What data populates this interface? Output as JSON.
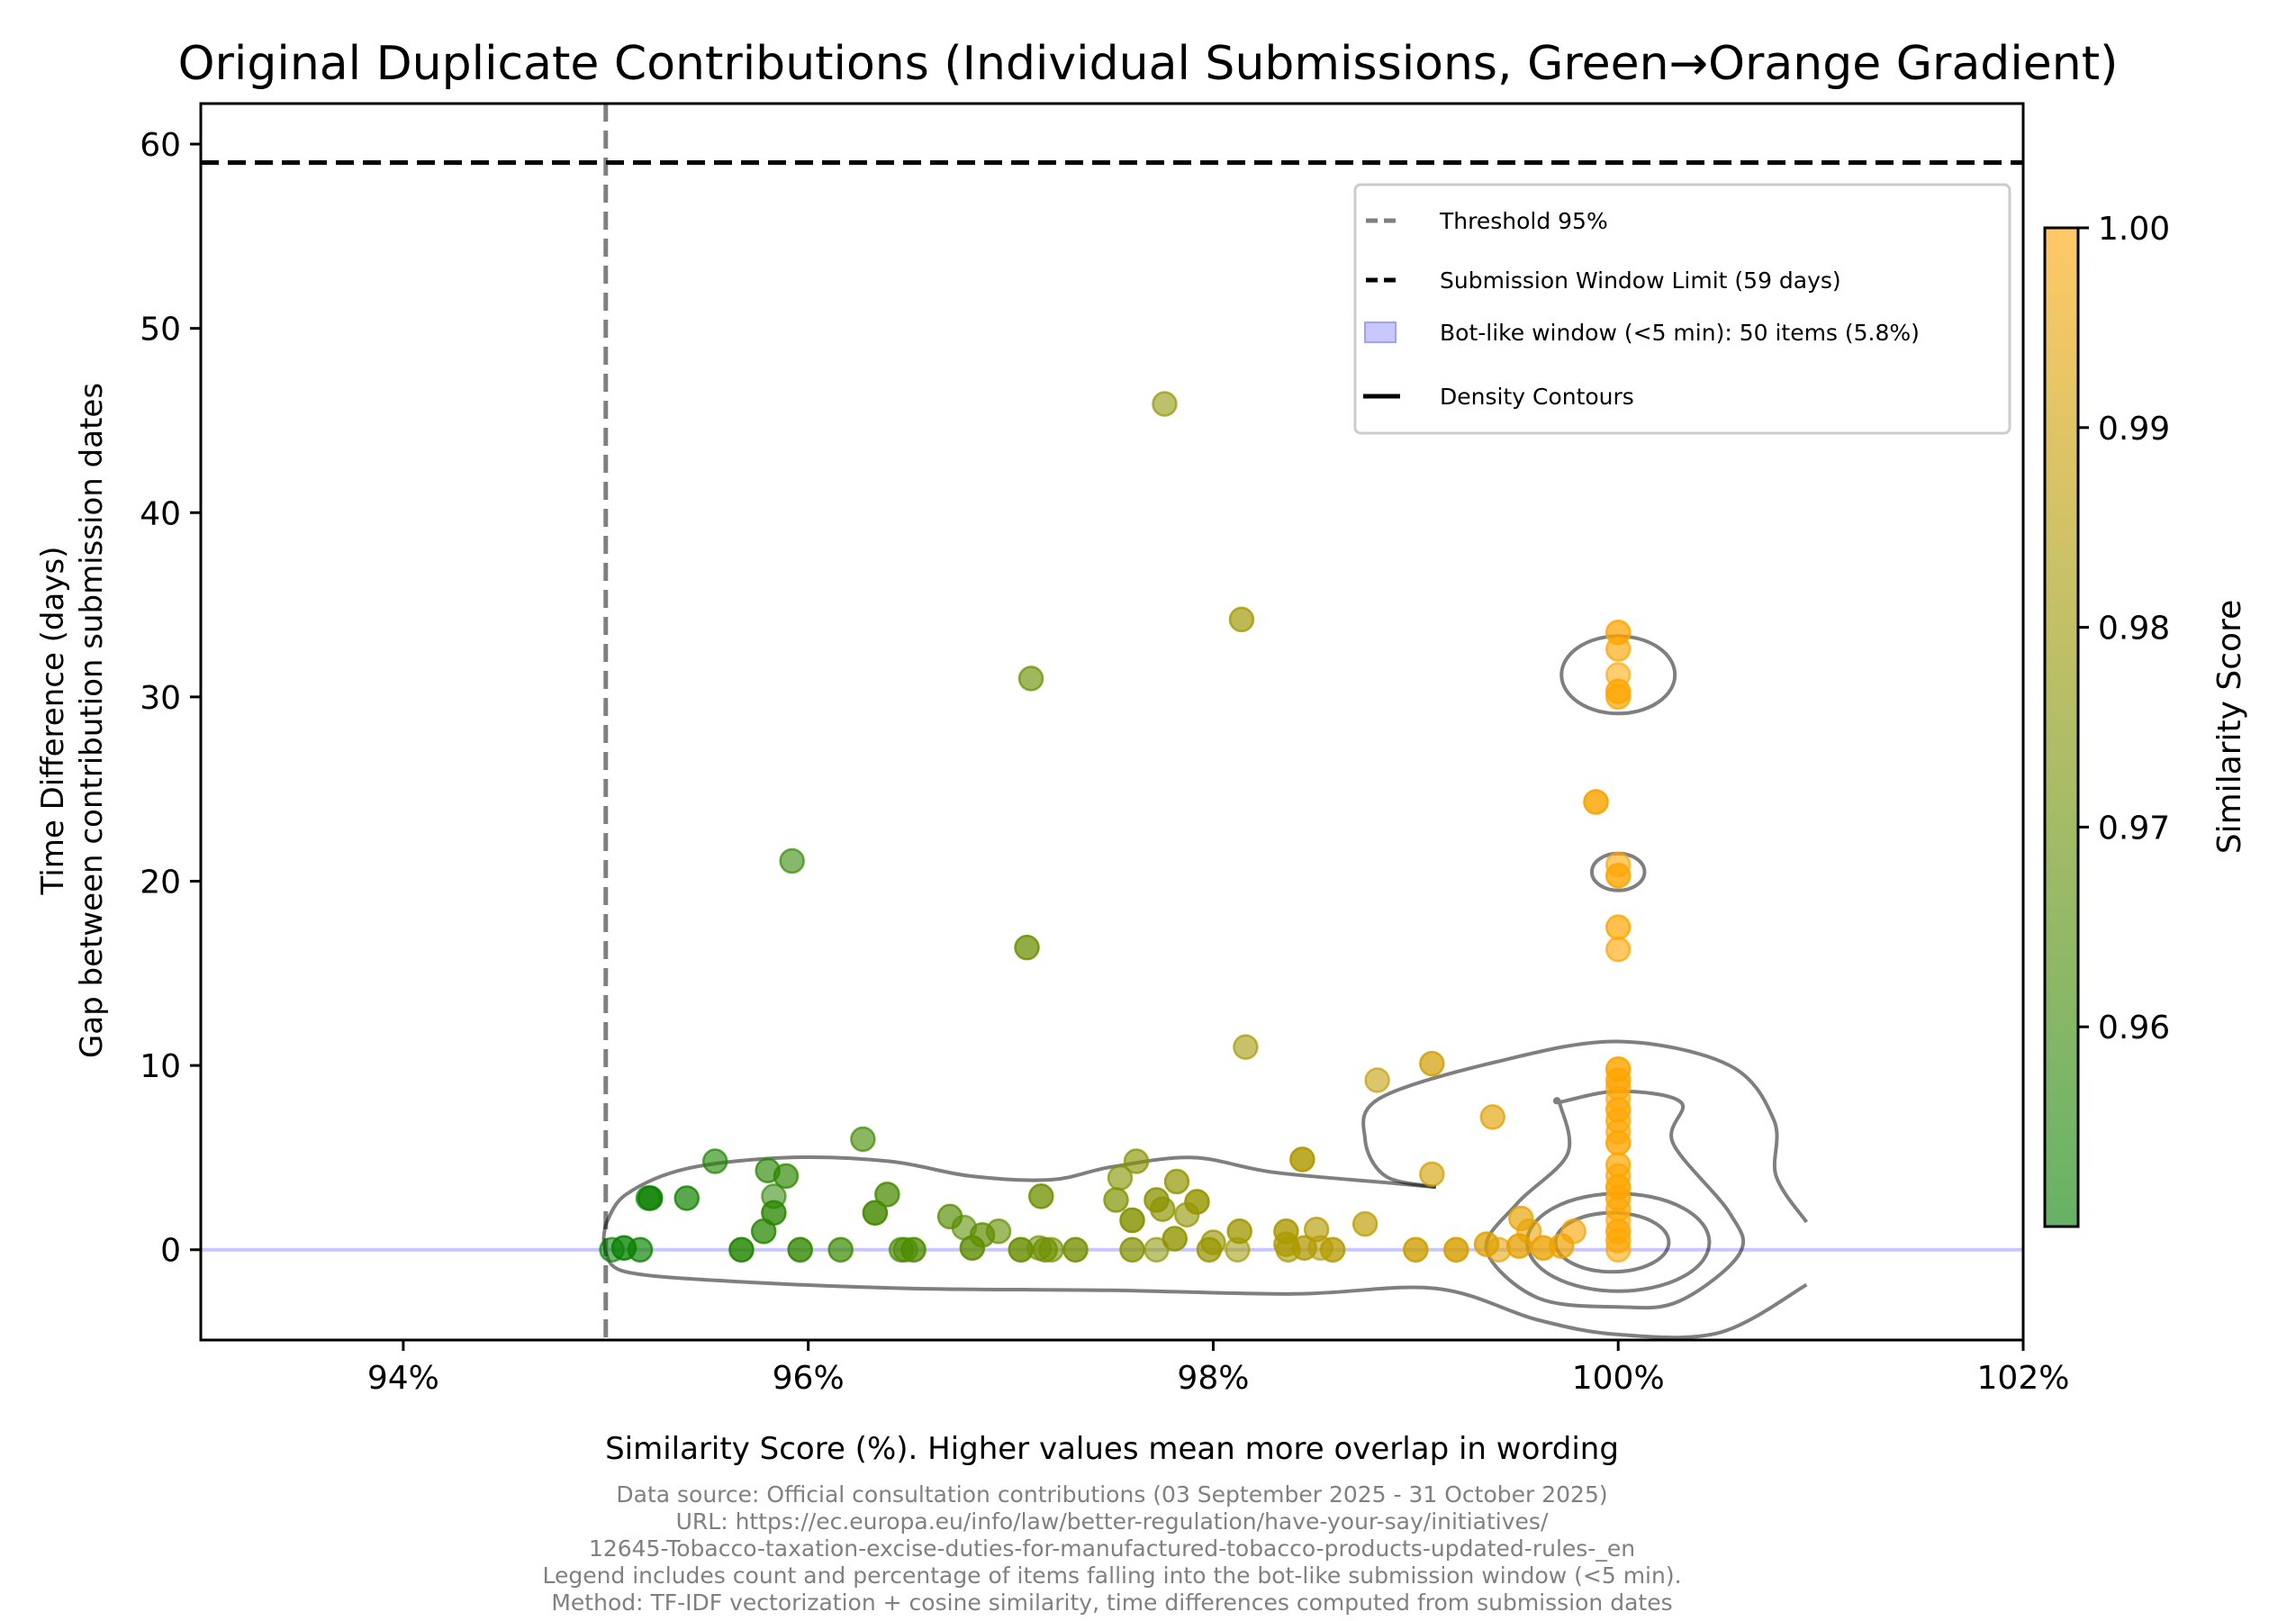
{
  "chart_data": {
    "type": "scatter",
    "title": "Original Duplicate Contributions (Individual Submissions, Green→Orange Gradient)",
    "xlabel": "Similarity Score (%). Higher values mean more overlap in wording",
    "ylabel_lines": [
      "Time Difference (days)",
      "Gap between contribution submission dates"
    ],
    "xlim": [
      93,
      102
    ],
    "ylim": [
      -4.9,
      62.2
    ],
    "x_ticks": [
      94,
      96,
      98,
      100,
      102
    ],
    "x_tick_labels": [
      "94%",
      "96%",
      "98%",
      "100%",
      "102%"
    ],
    "y_ticks": [
      0,
      10,
      20,
      30,
      40,
      50,
      60
    ],
    "y_tick_labels": [
      "0",
      "10",
      "20",
      "30",
      "40",
      "50",
      "60"
    ],
    "grid": false,
    "reference_lines": {
      "threshold": {
        "label": "Threshold 95%",
        "x": 95,
        "color": "#808080",
        "style": "dashed"
      },
      "window_limit": {
        "label": "Submission Window Limit (59 days)",
        "y": 59,
        "color": "#000000",
        "style": "dashed"
      },
      "bot_window": {
        "label": "Bot-like window (<5 min): 50 items (5.8%)",
        "y_range_days": [
          0,
          0.0035
        ],
        "color": "#c8c8ff"
      }
    },
    "legend": {
      "placement": "upper-right",
      "entries": [
        {
          "label": "Threshold 95%",
          "kind": "dashed-line",
          "color": "#808080"
        },
        {
          "label": "Submission Window Limit (59 days)",
          "kind": "dashed-line",
          "color": "#000000"
        },
        {
          "label": "Bot-like window (<5 min): 50 items (5.8%)",
          "kind": "patch",
          "color": "#c8c8ff"
        },
        {
          "label": "Density Contours",
          "kind": "solid-line",
          "color": "#000000"
        }
      ]
    },
    "colorbar": {
      "label": "Similarity Score",
      "range": [
        0.95,
        1.0
      ],
      "ticks": [
        0.96,
        0.97,
        0.98,
        0.99,
        1.0
      ],
      "tick_labels": [
        "0.96",
        "0.97",
        "0.98",
        "0.99",
        "1.00"
      ],
      "colors": [
        "#008000",
        "#ffa500"
      ]
    },
    "points": [
      {
        "x": 95.03,
        "y": 0.0
      },
      {
        "x": 95.09,
        "y": 0.1
      },
      {
        "x": 95.17,
        "y": 0.0
      },
      {
        "x": 95.21,
        "y": 2.8
      },
      {
        "x": 95.22,
        "y": 2.8
      },
      {
        "x": 95.4,
        "y": 2.8
      },
      {
        "x": 95.54,
        "y": 4.8
      },
      {
        "x": 95.67,
        "y": 0.0
      },
      {
        "x": 95.78,
        "y": 1.0
      },
      {
        "x": 95.8,
        "y": 4.3
      },
      {
        "x": 95.83,
        "y": 2.9
      },
      {
        "x": 95.83,
        "y": 2.0
      },
      {
        "x": 95.89,
        "y": 4.0
      },
      {
        "x": 95.92,
        "y": 21.1
      },
      {
        "x": 95.96,
        "y": 0.0
      },
      {
        "x": 96.16,
        "y": 0.0
      },
      {
        "x": 96.27,
        "y": 6.0
      },
      {
        "x": 96.33,
        "y": 2.0
      },
      {
        "x": 96.39,
        "y": 3.0
      },
      {
        "x": 96.46,
        "y": 0.0
      },
      {
        "x": 96.48,
        "y": 0.0
      },
      {
        "x": 96.52,
        "y": 0.0
      },
      {
        "x": 96.7,
        "y": 1.8
      },
      {
        "x": 96.77,
        "y": 1.2
      },
      {
        "x": 96.81,
        "y": 0.1
      },
      {
        "x": 96.86,
        "y": 0.8
      },
      {
        "x": 96.94,
        "y": 1.0
      },
      {
        "x": 97.05,
        "y": 0.0
      },
      {
        "x": 97.08,
        "y": 16.4
      },
      {
        "x": 97.1,
        "y": 31.0
      },
      {
        "x": 97.14,
        "y": 0.1
      },
      {
        "x": 97.15,
        "y": 2.9
      },
      {
        "x": 97.17,
        "y": 0.0
      },
      {
        "x": 97.2,
        "y": 0.0
      },
      {
        "x": 97.32,
        "y": 0.0
      },
      {
        "x": 97.52,
        "y": 2.7
      },
      {
        "x": 97.54,
        "y": 3.9
      },
      {
        "x": 97.6,
        "y": 1.6
      },
      {
        "x": 97.6,
        "y": 0.0
      },
      {
        "x": 97.62,
        "y": 4.8
      },
      {
        "x": 97.72,
        "y": 0.0
      },
      {
        "x": 97.72,
        "y": 2.7
      },
      {
        "x": 97.75,
        "y": 2.2
      },
      {
        "x": 97.76,
        "y": 45.9
      },
      {
        "x": 97.81,
        "y": 0.6
      },
      {
        "x": 97.82,
        "y": 3.7
      },
      {
        "x": 97.87,
        "y": 1.9
      },
      {
        "x": 97.92,
        "y": 2.6
      },
      {
        "x": 97.98,
        "y": 0.0
      },
      {
        "x": 98.0,
        "y": 0.4
      },
      {
        "x": 98.12,
        "y": 0.0
      },
      {
        "x": 98.13,
        "y": 1.0
      },
      {
        "x": 98.14,
        "y": 34.2
      },
      {
        "x": 98.16,
        "y": 11.0
      },
      {
        "x": 98.36,
        "y": 1.0
      },
      {
        "x": 98.36,
        "y": 0.3
      },
      {
        "x": 98.37,
        "y": 0.0
      },
      {
        "x": 98.44,
        "y": 4.9
      },
      {
        "x": 98.45,
        "y": 0.1
      },
      {
        "x": 98.51,
        "y": 1.1
      },
      {
        "x": 98.53,
        "y": 0.1
      },
      {
        "x": 98.59,
        "y": 0.0
      },
      {
        "x": 98.75,
        "y": 1.4
      },
      {
        "x": 98.81,
        "y": 9.2
      },
      {
        "x": 99.0,
        "y": 0.0
      },
      {
        "x": 99.08,
        "y": 10.1
      },
      {
        "x": 99.08,
        "y": 4.1
      },
      {
        "x": 99.2,
        "y": 0.0
      },
      {
        "x": 99.35,
        "y": 0.3
      },
      {
        "x": 99.38,
        "y": 7.2
      },
      {
        "x": 99.41,
        "y": 0.0
      },
      {
        "x": 99.51,
        "y": 0.2
      },
      {
        "x": 99.52,
        "y": 1.7
      },
      {
        "x": 99.56,
        "y": 1.0
      },
      {
        "x": 99.63,
        "y": 0.1
      },
      {
        "x": 99.72,
        "y": 0.2
      },
      {
        "x": 99.78,
        "y": 1.0
      },
      {
        "x": 99.89,
        "y": 24.3
      },
      {
        "x": 100.0,
        "y": 33.5
      },
      {
        "x": 100.0,
        "y": 32.6
      },
      {
        "x": 100.0,
        "y": 31.2
      },
      {
        "x": 100.0,
        "y": 30.3
      },
      {
        "x": 100.0,
        "y": 30.0
      },
      {
        "x": 100.0,
        "y": 20.9
      },
      {
        "x": 100.0,
        "y": 20.3
      },
      {
        "x": 100.0,
        "y": 17.5
      },
      {
        "x": 100.0,
        "y": 16.3
      },
      {
        "x": 100.0,
        "y": 9.8
      },
      {
        "x": 100.0,
        "y": 9.2
      },
      {
        "x": 100.0,
        "y": 8.8
      },
      {
        "x": 100.0,
        "y": 8.2
      },
      {
        "x": 100.0,
        "y": 7.6
      },
      {
        "x": 100.0,
        "y": 7.0
      },
      {
        "x": 100.0,
        "y": 6.4
      },
      {
        "x": 100.0,
        "y": 5.8
      },
      {
        "x": 100.0,
        "y": 4.6
      },
      {
        "x": 100.0,
        "y": 4.0
      },
      {
        "x": 100.0,
        "y": 3.4
      },
      {
        "x": 100.0,
        "y": 2.8
      },
      {
        "x": 100.0,
        "y": 2.2
      },
      {
        "x": 100.0,
        "y": 1.6
      },
      {
        "x": 100.0,
        "y": 1.0
      },
      {
        "x": 100.0,
        "y": 0.5
      },
      {
        "x": 100.0,
        "y": 0.0
      }
    ],
    "contours": [
      {
        "level": "outer-left",
        "path_data_units": [
          [
            95.0,
            1.4
          ],
          [
            95.1,
            3.0
          ],
          [
            95.4,
            4.4
          ],
          [
            95.9,
            5.0
          ],
          [
            96.4,
            4.8
          ],
          [
            96.8,
            4.0
          ],
          [
            97.2,
            3.8
          ],
          [
            97.5,
            4.5
          ],
          [
            97.9,
            5.0
          ],
          [
            98.3,
            4.2
          ],
          [
            98.9,
            3.6
          ],
          [
            99.1,
            3.4
          ]
        ]
      },
      {
        "level": "outer",
        "ring_data_units": [
          [
            99.1,
            3.4
          ],
          [
            98.85,
            4.0
          ],
          [
            98.75,
            6.0
          ],
          [
            98.82,
            8.2
          ],
          [
            99.4,
            10.2
          ],
          [
            100.0,
            11.3
          ],
          [
            100.55,
            10.0
          ],
          [
            100.77,
            7.0
          ],
          [
            100.78,
            4.0
          ],
          [
            100.93,
            1.5
          ]
        ],
        "lower_data_units": [
          [
            95.0,
            -0.2
          ],
          [
            95.1,
            -1.2
          ],
          [
            95.6,
            -1.7
          ],
          [
            96.5,
            -2.1
          ],
          [
            97.5,
            -2.2
          ],
          [
            98.4,
            -2.4
          ],
          [
            99.1,
            -2.1
          ],
          [
            99.6,
            -3.8
          ],
          [
            100.0,
            -4.6
          ],
          [
            100.5,
            -4.5
          ],
          [
            100.93,
            -1.9
          ]
        ]
      },
      {
        "level": "mid",
        "ring_data_units": [
          [
            99.71,
            8.0
          ],
          [
            100.0,
            8.6
          ],
          [
            100.31,
            8.0
          ],
          [
            100.27,
            5.8
          ],
          [
            100.55,
            2.0
          ],
          [
            100.6,
            -0.2
          ],
          [
            100.3,
            -2.8
          ],
          [
            100.0,
            -3.1
          ],
          [
            99.6,
            -2.6
          ],
          [
            99.35,
            0.0
          ],
          [
            99.5,
            2.5
          ],
          [
            99.75,
            5.2
          ],
          [
            99.71,
            8.0
          ]
        ]
      },
      {
        "level": "inner",
        "ellipse": {
          "cx": 100.0,
          "cy": 0.4,
          "rx": 0.45,
          "ry": 2.65
        }
      },
      {
        "level": "core",
        "ellipse": {
          "cx": 99.97,
          "cy": 0.4,
          "rx": 0.28,
          "ry": 1.6
        }
      },
      {
        "level": "island-top",
        "ellipse": {
          "cx": 100.0,
          "cy": 31.2,
          "rx": 0.28,
          "ry": 2.1
        }
      },
      {
        "level": "island-mid",
        "ellipse": {
          "cx": 100.0,
          "cy": 20.5,
          "rx": 0.13,
          "ry": 1.0
        }
      }
    ],
    "footer_lines": [
      "Data source: Official consultation contributions (03 September 2025 - 31 October 2025)",
      "URL: https://ec.europa.eu/info/law/better-regulation/have-your-say/initiatives/",
      "12645-Tobacco-taxation-excise-duties-for-manufactured-tobacco-products-updated-rules-_en",
      "Legend includes count and percentage of items falling into the bot-like submission window (<5 min).",
      "Method: TF-IDF vectorization + cosine similarity, time differences computed from submission dates"
    ]
  }
}
